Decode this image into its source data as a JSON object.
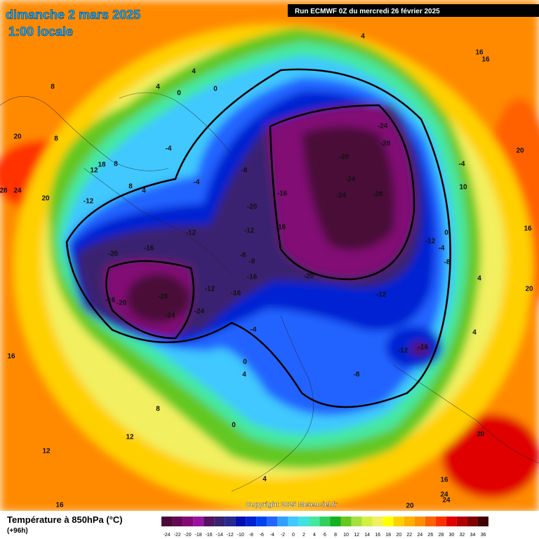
{
  "header": {
    "title": "dimanche 2 mars 2025",
    "subtitle": "1:00 locale"
  },
  "run": "Run ECMWF 0Z du mercredi 26 février 2025",
  "copyright": "Copyright 2025 Meteociel.fr",
  "footer": {
    "title": "Température à 850hPa (°C)",
    "lead": "(+96h)"
  },
  "legend": {
    "ticks": [
      -24,
      -22,
      -20,
      -18,
      -16,
      -14,
      -12,
      -10,
      -8,
      -6,
      -4,
      -2,
      0,
      2,
      4,
      6,
      8,
      10,
      12,
      14,
      16,
      18,
      20,
      22,
      24,
      26,
      28,
      30,
      32,
      34,
      36
    ],
    "colors": [
      "#4a0838",
      "#640a55",
      "#820a74",
      "#9c12a0",
      "#561060",
      "#3a2070",
      "#28288e",
      "#0010b0",
      "#0022d2",
      "#0042f2",
      "#2464ff",
      "#30a0ff",
      "#40c8ff",
      "#40e2e0",
      "#44e8a0",
      "#30d060",
      "#14b020",
      "#64c820",
      "#a4e040",
      "#d2f040",
      "#f2f060",
      "#ffff00",
      "#ffd000",
      "#ffb000",
      "#ff9000",
      "#ff6000",
      "#ff3000",
      "#e00000",
      "#b00000",
      "#800000",
      "#400000"
    ]
  },
  "contour_labels": [
    -24,
    -28,
    -20,
    -24,
    -24,
    -28,
    -16,
    -20,
    -16,
    -12,
    -8,
    -4,
    -4,
    -12,
    -16,
    -20,
    -8,
    -8,
    -16,
    -16,
    -12,
    -28,
    -24,
    -24,
    -16,
    -20,
    -20,
    -12,
    -12,
    -4,
    -8,
    0,
    -4,
    10,
    16,
    20,
    20,
    4,
    4,
    -12,
    -16,
    -8,
    -4,
    0,
    4,
    0,
    8,
    12,
    12,
    16,
    16,
    20,
    16,
    24,
    24,
    20,
    4,
    4,
    16,
    16,
    4,
    4,
    0,
    0,
    8,
    20,
    8,
    12,
    18,
    8,
    8,
    4,
    -12,
    20,
    24,
    28
  ]
}
